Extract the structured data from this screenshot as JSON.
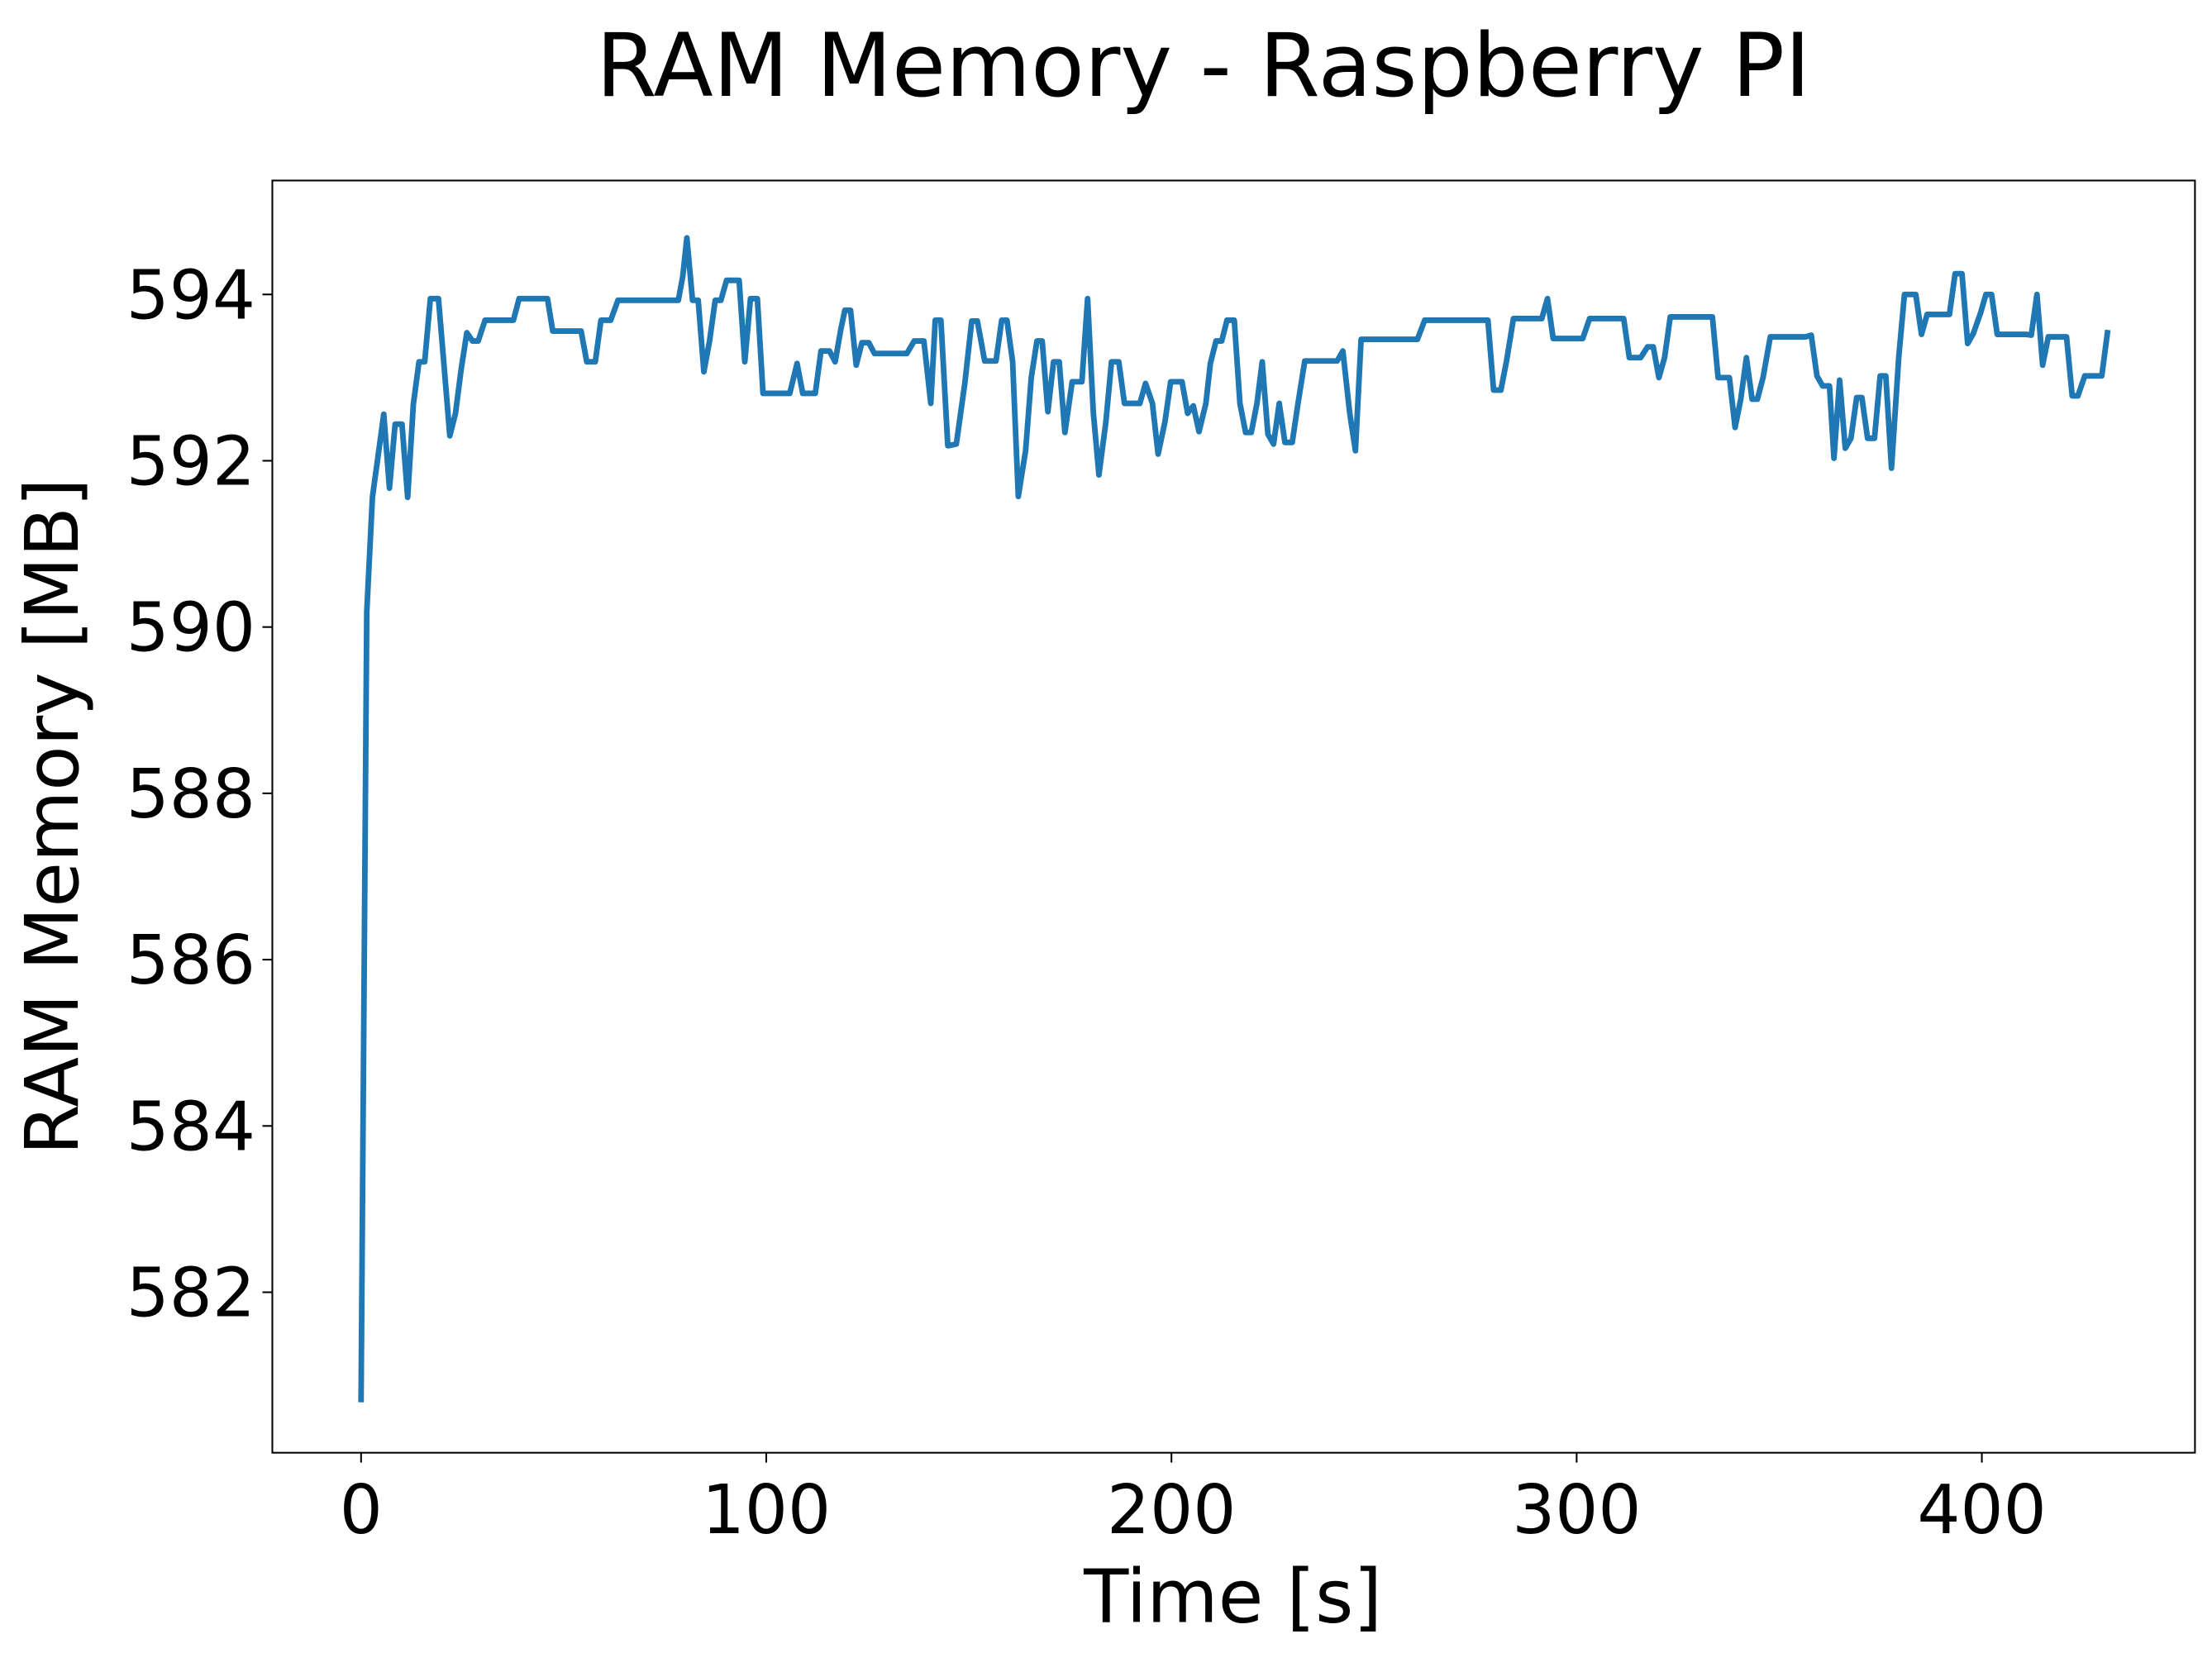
{
  "chart_data": {
    "type": "line",
    "title": "RAM Memory - Raspberry PI",
    "x_label": "Time [s]",
    "y_label": "RAM Memory [MB]",
    "color": "#1f77b4",
    "xlim": [
      -21.9,
      452.6
    ],
    "ylim": [
      580.07,
      595.37
    ],
    "xticks": [
      0,
      100,
      200,
      300,
      400
    ],
    "yticks": [
      582,
      584,
      586,
      588,
      590,
      592,
      594
    ],
    "x": [
      0,
      1.4,
      2.8,
      5.6,
      7.0,
      8.4,
      10.1,
      11.5,
      12.9,
      14.3,
      15.7,
      17.1,
      19.1,
      20.5,
      21.9,
      23.3,
      24.7,
      26.1,
      27.5,
      28.9,
      30.6,
      37.6,
      39.0,
      46.0,
      47.3,
      54.3,
      55.7,
      57.8,
      59.2,
      61.6,
      63.4,
      78.3,
      79.4,
      80.4,
      81.8,
      83.2,
      84.6,
      86.0,
      87.4,
      88.8,
      90.2,
      93.3,
      94.7,
      96.1,
      97.8,
      99.2,
      105.8,
      107.6,
      109.0,
      112.1,
      113.5,
      115.6,
      117.0,
      118.4,
      119.4,
      120.8,
      122.2,
      123.6,
      125.3,
      126.7,
      134.7,
      136.5,
      138.9,
      140.6,
      141.7,
      143.1,
      144.8,
      146.9,
      149.0,
      150.7,
      152.1,
      153.9,
      156.7,
      158.1,
      159.4,
      160.8,
      162.2,
      164.0,
      165.4,
      166.8,
      168.1,
      169.5,
      170.9,
      172.3,
      173.7,
      175.5,
      177.9,
      179.3,
      180.7,
      182.1,
      183.8,
      185.2,
      187.0,
      188.4,
      192.2,
      193.6,
      195.3,
      196.7,
      198.4,
      199.8,
      202.6,
      204.0,
      205.4,
      206.8,
      208.5,
      209.6,
      211.0,
      212.4,
      213.7,
      215.5,
      216.9,
      218.3,
      219.7,
      221.1,
      222.4,
      223.8,
      225.2,
      226.6,
      228.0,
      229.8,
      231.2,
      232.9,
      240.9,
      242.3,
      244.0,
      245.4,
      246.8,
      260.7,
      262.5,
      278.1,
      279.5,
      281.3,
      282.7,
      284.4,
      291.4,
      292.8,
      294.2,
      301.5,
      303.2,
      311.6,
      313.0,
      315.8,
      317.5,
      318.9,
      320.3,
      321.7,
      323.1,
      333.5,
      334.9,
      337.7,
      339.1,
      340.5,
      341.9,
      343.3,
      344.6,
      346.0,
      347.8,
      356.5,
      357.9,
      359.3,
      360.7,
      362.4,
      363.5,
      364.9,
      366.3,
      367.7,
      369.1,
      370.4,
      371.8,
      373.5,
      374.9,
      376.3,
      377.7,
      379.5,
      380.9,
      383.7,
      385.1,
      386.5,
      392.0,
      393.4,
      395.1,
      396.5,
      397.9,
      399.7,
      401.0,
      402.4,
      403.8,
      410.8,
      412.2,
      413.6,
      415.0,
      416.4,
      420.9,
      422.3,
      423.7,
      425.4,
      429.6,
      431.0
    ],
    "values": [
      580.71,
      590.18,
      591.56,
      592.56,
      591.67,
      592.44,
      592.44,
      591.56,
      592.68,
      593.19,
      593.19,
      593.95,
      593.95,
      593.13,
      592.3,
      592.57,
      593.1,
      593.54,
      593.44,
      593.44,
      593.69,
      593.69,
      593.95,
      593.95,
      593.56,
      593.56,
      593.19,
      593.19,
      593.69,
      593.69,
      593.93,
      593.93,
      594.22,
      594.68,
      593.93,
      593.93,
      593.07,
      593.44,
      593.93,
      593.93,
      594.17,
      594.17,
      593.19,
      593.95,
      593.95,
      592.81,
      592.81,
      593.17,
      592.81,
      592.81,
      593.32,
      593.32,
      593.19,
      593.58,
      593.81,
      593.81,
      593.15,
      593.42,
      593.42,
      593.29,
      593.29,
      593.44,
      593.44,
      592.69,
      593.69,
      593.69,
      592.18,
      592.2,
      592.93,
      593.68,
      593.68,
      593.2,
      593.2,
      593.69,
      593.69,
      593.19,
      591.57,
      592.12,
      593.0,
      593.44,
      593.44,
      592.59,
      593.19,
      593.19,
      592.34,
      592.95,
      592.95,
      593.95,
      592.59,
      591.83,
      592.46,
      593.19,
      593.19,
      592.69,
      592.69,
      592.93,
      592.69,
      592.08,
      592.47,
      592.95,
      592.95,
      592.57,
      592.66,
      592.35,
      592.69,
      593.17,
      593.44,
      593.44,
      593.69,
      593.69,
      592.69,
      592.34,
      592.34,
      592.69,
      593.19,
      592.32,
      592.2,
      592.69,
      592.22,
      592.22,
      592.68,
      593.2,
      593.2,
      593.32,
      592.57,
      592.12,
      593.46,
      593.46,
      593.69,
      593.69,
      592.85,
      592.85,
      593.2,
      593.71,
      593.71,
      593.95,
      593.47,
      593.47,
      593.71,
      593.71,
      593.24,
      593.24,
      593.37,
      593.37,
      593.0,
      593.24,
      593.73,
      593.73,
      593.0,
      593.0,
      592.4,
      592.74,
      593.24,
      592.74,
      592.74,
      593.0,
      593.49,
      593.49,
      593.51,
      593.02,
      592.9,
      592.9,
      592.03,
      592.97,
      592.15,
      592.27,
      592.76,
      592.76,
      592.27,
      592.27,
      593.02,
      593.02,
      591.91,
      593.25,
      594.0,
      594.0,
      593.52,
      593.76,
      593.76,
      594.25,
      594.25,
      593.41,
      593.53,
      593.78,
      594.0,
      594.0,
      593.52,
      593.52,
      593.51,
      594.0,
      593.15,
      593.49,
      593.49,
      592.78,
      592.78,
      593.02,
      593.02,
      593.54
    ]
  }
}
